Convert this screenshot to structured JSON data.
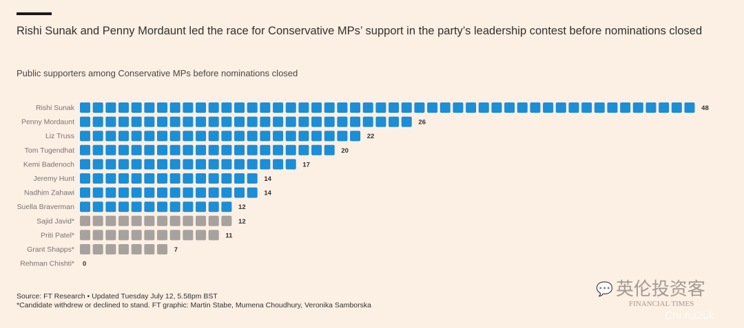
{
  "title": "Rishi Sunak and Penny Mordaunt led the race for Conservative MPs’ support in the party’s leadership contest before nominations closed",
  "subtitle": "Public supporters among Conservative MPs before nominations closed",
  "source_line1": "Source: FT Research • Updated Tuesday July 12, 5.58pm BST",
  "source_line2": "*Candidate withdrew or declined to stand. FT graphic: Martin Stabe, Mumena Choudhury, Veronika Samborska",
  "watermark": {
    "chinese": "英伦投资客",
    "english": "FINANCIAL TIMES",
    "handle": "Chi na2uk",
    "icon": "wechat-icon"
  },
  "colors": {
    "active": "#1b8ed6",
    "withdrawn": "#a7a29e",
    "background": "#fcefe4"
  },
  "chart_data": {
    "type": "bar",
    "style": "unit squares, one per MP",
    "orientation": "horizontal",
    "categories": [
      "Rishi Sunak",
      "Penny Mordaunt",
      "Liz Truss",
      "Tom Tugendhat",
      "Kemi Badenoch",
      "Jeremy Hunt",
      "Nadhim Zahawi",
      "Suella Braverman",
      "Sajid Javid*",
      "Priti Patel*",
      "Grant Shapps*",
      "Rehman Chishti*"
    ],
    "values": [
      48,
      26,
      22,
      20,
      17,
      14,
      14,
      12,
      12,
      11,
      7,
      0
    ],
    "withdrawn": [
      false,
      false,
      false,
      false,
      false,
      false,
      false,
      false,
      true,
      true,
      true,
      true
    ],
    "grid": false
  }
}
